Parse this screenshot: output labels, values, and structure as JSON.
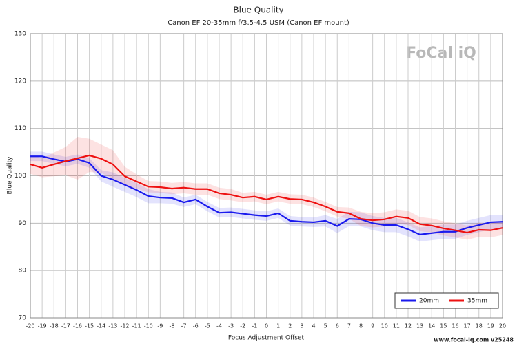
{
  "chart_data": {
    "type": "line",
    "title": "Blue Quality",
    "subtitle": "Canon EF 20-35mm f/3.5-4.5 USM (Canon EF mount)",
    "xlabel": "Focus Adjustment Offset",
    "ylabel": "Blue Quality",
    "logo": "FoCal iQ",
    "footer": "www.focal-iq.com  v25248",
    "x": [
      -20,
      -19,
      -18,
      -17,
      -16,
      -15,
      -14,
      -13,
      -12,
      -11,
      -10,
      -9,
      -8,
      -7,
      -6,
      -5,
      -4,
      -3,
      -2,
      -1,
      0,
      1,
      2,
      3,
      4,
      5,
      6,
      7,
      8,
      9,
      10,
      11,
      12,
      13,
      14,
      15,
      16,
      17,
      18,
      19,
      20
    ],
    "xlim": [
      -20,
      20
    ],
    "xticks": [
      -20,
      -19,
      -18,
      -17,
      -16,
      -15,
      -14,
      -13,
      -12,
      -11,
      -10,
      -9,
      -8,
      -7,
      -6,
      -5,
      -4,
      -3,
      -2,
      -1,
      0,
      1,
      2,
      3,
      4,
      5,
      6,
      7,
      8,
      9,
      10,
      11,
      12,
      13,
      14,
      15,
      16,
      17,
      18,
      19,
      20
    ],
    "ylim": [
      70,
      130
    ],
    "yticks": [
      70,
      80,
      90,
      100,
      110,
      120,
      130
    ],
    "grid": true,
    "legend": "lower right",
    "series": [
      {
        "name": "20mm",
        "color": "#1a1aee",
        "values": [
          104.1,
          104.1,
          103.5,
          103,
          103.5,
          102.7,
          100,
          99.2,
          98.1,
          97,
          95.7,
          95.4,
          95.3,
          94.4,
          95,
          93.5,
          92.2,
          92.3,
          92,
          91.7,
          91.5,
          92.1,
          90.5,
          90.3,
          90.2,
          90.5,
          89.4,
          90.9,
          90.8,
          90,
          89.6,
          89.6,
          88.7,
          87.6,
          87.9,
          88.2,
          88.2,
          89,
          89.6,
          90.2,
          90.3
        ],
        "band": [
          1,
          1,
          1,
          1,
          1,
          1,
          1.2,
          1.5,
          1.5,
          1.5,
          1.5,
          1.2,
          1.2,
          1,
          1,
          1,
          1,
          1,
          1,
          1,
          1,
          1,
          1,
          1,
          1,
          1.2,
          1.5,
          1.5,
          1.5,
          1.5,
          1.5,
          1.5,
          1.5,
          1.5,
          1.5,
          1.5,
          1.5,
          1.5,
          1.5,
          1.5,
          1.5
        ]
      },
      {
        "name": "35mm",
        "color": "#ee1111",
        "values": [
          102.4,
          101.7,
          102.4,
          103.1,
          103.7,
          104.3,
          103.6,
          102.4,
          99.9,
          98.8,
          97.7,
          97.6,
          97.3,
          97.5,
          97.2,
          97.2,
          96.3,
          96,
          95.4,
          95.6,
          95,
          95.6,
          95.1,
          95,
          94.4,
          93.5,
          92.4,
          92.1,
          90.9,
          90.6,
          90.8,
          91.4,
          91.1,
          89.8,
          89.5,
          88.9,
          88.5,
          88,
          88.6,
          88.5,
          89
        ],
        "band": [
          2,
          2,
          2.5,
          3,
          4.5,
          3.5,
          3,
          3,
          2,
          1.5,
          1.2,
          1.2,
          1.2,
          1.2,
          1.2,
          1.2,
          1.2,
          1.2,
          1,
          1,
          1,
          1,
          1,
          1,
          1,
          1,
          1,
          1.2,
          1.5,
          1.5,
          1.5,
          1.5,
          1.5,
          1.5,
          1.5,
          1.5,
          1.5,
          1.5,
          1.5,
          1.5,
          1.5
        ]
      }
    ]
  }
}
